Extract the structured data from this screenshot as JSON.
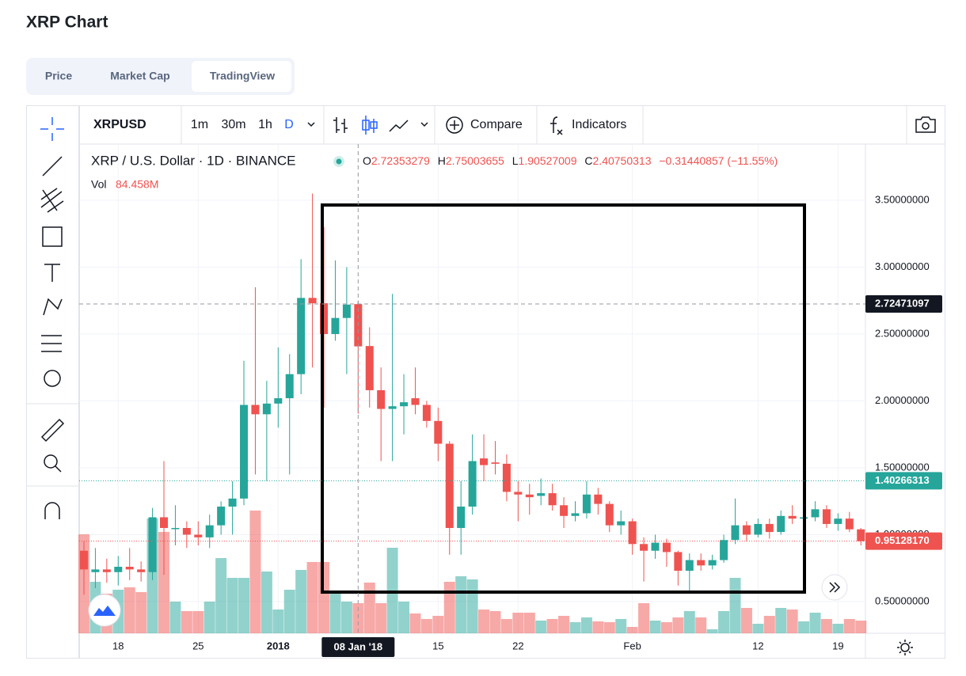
{
  "page_title": "XRP Chart",
  "tabs": [
    "Price",
    "Market Cap",
    "TradingView"
  ],
  "toolbar": {
    "symbol": "XRPUSD",
    "intervals": [
      "1m",
      "30m",
      "1h",
      "D"
    ],
    "compare": "Compare",
    "indicators": "Indicators"
  },
  "legend": {
    "title": "XRP / U.S. Dollar · 1D · BINANCE",
    "ohlc_letters": [
      "O",
      "H",
      "L",
      "C"
    ],
    "change": "−0.31440857 (−11.55%)",
    "vol_label": "Vol",
    "vol_value": "84.458M",
    "bar_index": 24
  },
  "chart_data": {
    "type": "candlestick",
    "categories": [
      null,
      null,
      null,
      "18",
      null,
      null,
      null,
      null,
      null,
      null,
      "25",
      null,
      null,
      null,
      null,
      null,
      null,
      "2018",
      null,
      null,
      null,
      null,
      null,
      null,
      "08 Jan '18",
      null,
      null,
      null,
      null,
      null,
      null,
      "15",
      null,
      null,
      null,
      null,
      null,
      null,
      "22",
      null,
      null,
      null,
      null,
      null,
      null,
      null,
      null,
      null,
      "Feb",
      null,
      null,
      null,
      null,
      null,
      null,
      null,
      null,
      null,
      null,
      "12",
      null,
      null,
      null,
      null,
      null,
      null,
      "19",
      null,
      null
    ],
    "open": [
      0.88,
      0.72,
      0.74,
      0.72,
      0.76,
      0.74,
      0.72,
      1.13,
      1.05,
      1.05,
      1.0,
      0.98,
      1.07,
      1.21,
      1.27,
      1.97,
      1.9,
      1.98,
      2.02,
      2.2,
      2.77,
      2.73,
      2.5,
      2.62,
      2.72353279,
      2.41,
      2.08,
      1.94,
      1.96,
      2.02,
      1.97,
      1.85,
      1.68,
      1.05,
      1.21,
      1.57,
      1.54,
      1.53,
      1.32,
      1.3,
      1.29,
      1.31,
      1.22,
      1.14,
      1.16,
      1.3,
      1.23,
      1.07,
      1.1,
      0.93,
      0.88,
      0.94,
      0.87,
      0.73,
      0.81,
      0.77,
      0.81,
      0.96,
      1.07,
      1.0,
      1.08,
      1.02,
      1.14,
      1.12,
      1.13,
      1.19,
      1.08,
      1.12,
      1.04
    ],
    "high": [
      0.95,
      0.9,
      0.82,
      0.84,
      0.9,
      0.8,
      1.2,
      1.55,
      1.22,
      1.1,
      1.1,
      1.15,
      1.25,
      1.4,
      2.3,
      2.85,
      2.15,
      2.4,
      2.35,
      3.06,
      3.55,
      3.3,
      3.05,
      3.0,
      2.75003655,
      2.55,
      2.25,
      2.8,
      2.2,
      2.25,
      2.0,
      1.95,
      1.7,
      1.4,
      1.75,
      1.75,
      1.7,
      1.6,
      1.4,
      1.38,
      1.42,
      1.38,
      1.28,
      1.25,
      1.4,
      1.35,
      1.25,
      1.18,
      1.12,
      0.98,
      1.0,
      0.97,
      0.88,
      0.86,
      0.86,
      0.85,
      1.0,
      1.27,
      1.1,
      1.12,
      1.12,
      1.18,
      1.22,
      1.17,
      1.25,
      1.22,
      1.16,
      1.17,
      1.05
    ],
    "low": [
      0.55,
      0.6,
      0.64,
      0.62,
      0.66,
      0.65,
      0.66,
      0.7,
      0.92,
      0.9,
      0.92,
      0.9,
      1.0,
      1.0,
      1.22,
      1.45,
      1.4,
      1.8,
      1.45,
      2.05,
      2.25,
      1.95,
      2.45,
      2.2,
      1.90527009,
      1.95,
      1.55,
      1.55,
      1.75,
      1.9,
      1.8,
      1.55,
      0.85,
      0.85,
      1.15,
      1.4,
      1.45,
      1.25,
      1.1,
      1.15,
      1.22,
      1.18,
      1.05,
      1.1,
      1.12,
      1.15,
      1.02,
      1.0,
      0.85,
      0.65,
      0.82,
      0.76,
      0.62,
      0.57,
      0.73,
      0.74,
      0.79,
      0.93,
      0.95,
      0.98,
      0.97,
      1.0,
      1.08,
      1.09,
      1.1,
      1.05,
      1.03,
      1.02,
      0.92
    ],
    "close": [
      0.74,
      0.74,
      0.72,
      0.76,
      0.74,
      0.72,
      1.13,
      1.05,
      1.05,
      1.0,
      0.98,
      1.07,
      1.21,
      1.27,
      1.97,
      1.9,
      1.98,
      2.02,
      2.2,
      2.77,
      2.73,
      2.5,
      2.62,
      2.72,
      2.40750313,
      2.08,
      1.94,
      1.96,
      1.99,
      1.97,
      1.85,
      1.68,
      1.05,
      1.21,
      1.55,
      1.52,
      1.53,
      1.32,
      1.3,
      1.28,
      1.31,
      1.22,
      1.14,
      1.16,
      1.3,
      1.23,
      1.07,
      1.1,
      0.93,
      0.88,
      0.94,
      0.87,
      0.73,
      0.81,
      0.77,
      0.81,
      0.96,
      1.07,
      1.0,
      1.08,
      1.02,
      1.14,
      1.12,
      1.13,
      1.19,
      1.08,
      1.12,
      1.04,
      0.9512817
    ],
    "volume": [
      277.5,
      144.3,
      111,
      122.1,
      128.8,
      115.4,
      321.9,
      284.2,
      88.8,
      62.2,
      62.2,
      88.8,
      210.9,
      155.4,
      155.4,
      344.1,
      173.2,
      66.6,
      122.1,
      177.6,
      199.8,
      199.8,
      111,
      88.8,
      84.458,
      142.1,
      84.4,
      239.8,
      88.8,
      55.5,
      40,
      48.8,
      144.3,
      159.8,
      151,
      66.6,
      62.2,
      40,
      57.7,
      57.7,
      35.5,
      40,
      48.8,
      31.1,
      44.4,
      33.3,
      31.1,
      40,
      17.8,
      84.4,
      35.5,
      31.1,
      44.4,
      62.2,
      44.4,
      11.1,
      62.2,
      155.4,
      71,
      26.6,
      48.8,
      71,
      66.6,
      33.3,
      57.7,
      40,
      26.6,
      40,
      35.5
    ],
    "ylim": [
      0.263,
      3.92
    ],
    "yticks": [
      {
        "value": 0.5,
        "label": "0.50000000"
      },
      {
        "value": 1.0,
        "label": "1.00000000"
      },
      {
        "value": 1.5,
        "label": "1.50000000"
      },
      {
        "value": 2.0,
        "label": "2.00000000"
      },
      {
        "value": 2.5,
        "label": "2.50000000"
      },
      {
        "value": 3.0,
        "label": "3.00000000"
      },
      {
        "value": 3.5,
        "label": "3.50000000"
      }
    ],
    "crosshair_price": 2.72471097,
    "line_price": 1.40266313,
    "last_price": {
      "value": 0.9512817,
      "label": "0.95128170"
    },
    "up_color": "#26a69a",
    "down_color": "#ef5350",
    "grid": true
  }
}
